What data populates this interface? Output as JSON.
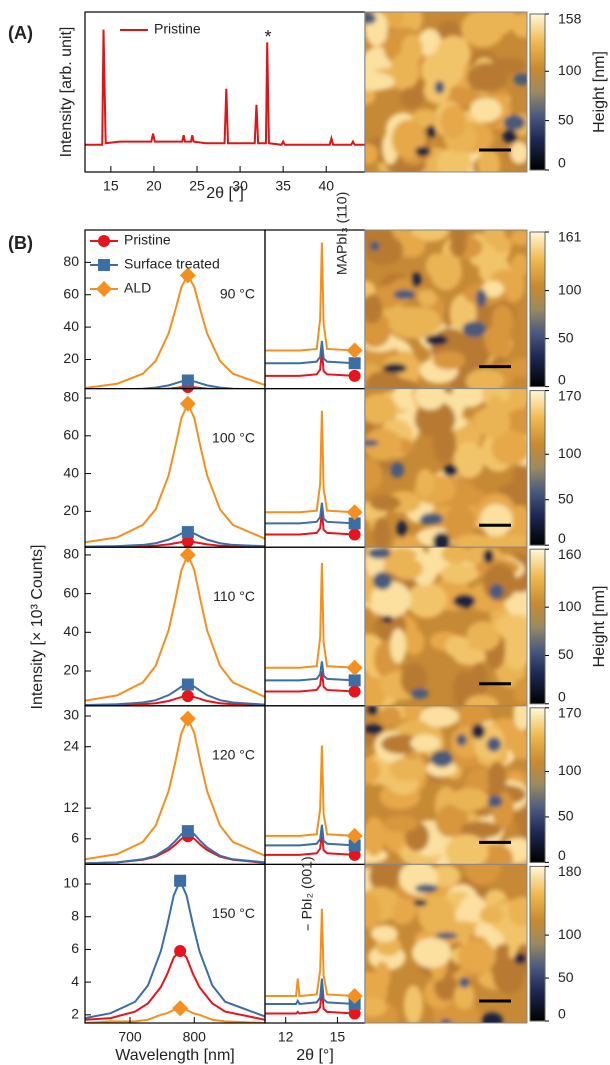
{
  "figure": {
    "panel_labels": [
      "(A)",
      "(B)"
    ],
    "ylabel": "Intensity [× 10³ Counts]"
  },
  "chart_data": [
    {
      "type": "line",
      "xlabel": "2θ [°]",
      "ylabel": "Intensity [arb. unit]",
      "xlim": [
        12,
        44.5
      ],
      "ylim": [
        0,
        100
      ],
      "xticks": [
        15,
        20,
        25,
        30,
        35,
        40
      ],
      "legend": "upper center",
      "annotations": [
        "*"
      ],
      "x": [
        12,
        13,
        14.0,
        14.15,
        14.4,
        16,
        19.7,
        19.9,
        20.1,
        22,
        23.3,
        23.45,
        23.6,
        24.3,
        24.45,
        24.6,
        26,
        28.2,
        28.4,
        28.6,
        30,
        31.7,
        31.9,
        32.1,
        33.0,
        33.15,
        33.35,
        34.8,
        35.0,
        35.2,
        38,
        40.4,
        40.6,
        40.8,
        42.5,
        42.9,
        43.1,
        43.3,
        44.5
      ],
      "series": [
        {
          "name": "Pristine",
          "color": "#e01414",
          "values": [
            17,
            17,
            17,
            89,
            18,
            19,
            19,
            24,
            19,
            19,
            19,
            23,
            19,
            19,
            23,
            19,
            18,
            18,
            52,
            18,
            18,
            18,
            42,
            18,
            18,
            81,
            18,
            17,
            19,
            17,
            17,
            17,
            21,
            17,
            17,
            17,
            19,
            17,
            17
          ]
        }
      ]
    },
    {
      "type": "image",
      "zlim": [
        0,
        158
      ],
      "zticks": [
        0,
        50,
        100,
        158
      ],
      "zlabel": "Height [nm]"
    },
    {
      "type": "line",
      "label": "90 °C",
      "legend": "upper left",
      "xlim": [
        630,
        910
      ],
      "ylim": [
        2,
        100
      ],
      "yticks": [
        20,
        40,
        60,
        80
      ],
      "x": [
        630,
        680,
        720,
        740,
        760,
        770,
        780,
        790,
        800,
        810,
        820,
        840,
        860,
        910
      ],
      "series": [
        {
          "name": "Pristine",
          "color": "#e8141c",
          "marker": "circle",
          "values": [
            1,
            1.1,
            1.3,
            1.6,
            2,
            2.4,
            2.8,
            3,
            2.8,
            2.4,
            2,
            1.6,
            1.3,
            1.1
          ]
        },
        {
          "name": "Surface treated",
          "color": "#3a6ea5",
          "marker": "square",
          "values": [
            1.2,
            1.4,
            1.9,
            2.6,
            4,
            5.2,
            6.4,
            7,
            6.4,
            5.2,
            4,
            2.6,
            1.9,
            1.4
          ]
        },
        {
          "name": "ALD",
          "color": "#f5901e",
          "marker": "diamond",
          "values": [
            2.4,
            5.0,
            11.2,
            19.1,
            36,
            49.8,
            64.8,
            72,
            64.8,
            49.8,
            36,
            19.1,
            11.2,
            4.2
          ]
        }
      ]
    },
    {
      "type": "line",
      "annotations": [
        "MAPbI₃ (110)"
      ],
      "xlim": [
        10.8,
        16.6
      ],
      "ylim": [
        0,
        100
      ],
      "x": [
        10.8,
        12,
        12.6,
        12.7,
        12.8,
        13.8,
        14.0,
        14.1,
        14.2,
        14.4,
        16.0
      ],
      "series": [
        {
          "color": "#e8141c",
          "marker": "circle",
          "values": [
            8,
            8,
            8,
            8,
            8,
            9,
            12,
            24,
            11,
            9,
            8
          ]
        },
        {
          "color": "#3a6ea5",
          "marker": "square",
          "values": [
            16,
            16,
            16,
            16,
            16,
            17,
            20,
            30,
            19,
            17,
            16
          ]
        },
        {
          "color": "#f5901e",
          "marker": "diamond",
          "values": [
            24,
            24,
            24,
            24,
            24,
            25,
            44,
            92,
            41,
            25,
            24
          ]
        }
      ]
    },
    {
      "type": "image",
      "zlim": [
        0,
        161
      ],
      "zticks": [
        0,
        50,
        100,
        161
      ]
    },
    {
      "type": "line",
      "label": "100 °C",
      "xlim": [
        630,
        910
      ],
      "ylim": [
        1,
        85
      ],
      "yticks": [
        20,
        40,
        60,
        80
      ],
      "x": [
        630,
        680,
        720,
        740,
        760,
        770,
        780,
        790,
        800,
        810,
        820,
        840,
        860,
        910
      ],
      "series": [
        {
          "color": "#e8141c",
          "marker": "circle",
          "values": [
            1.1,
            1.2,
            1.5,
            1.8,
            2.5,
            3.1,
            3.7,
            4,
            3.7,
            3.1,
            2.5,
            1.8,
            1.5,
            1.2
          ]
        },
        {
          "color": "#3a6ea5",
          "marker": "square",
          "values": [
            1.3,
            1.6,
            2.2,
            3.1,
            5,
            6.5,
            8.2,
            9,
            8.2,
            6.5,
            5,
            3.1,
            2.2,
            1.5
          ]
        },
        {
          "color": "#f5901e",
          "marker": "diamond",
          "values": [
            3.6,
            6.2,
            12.8,
            21.1,
            39,
            53.6,
            69.4,
            77,
            69.4,
            53.6,
            39,
            21.1,
            12.8,
            5.5
          ]
        }
      ]
    },
    {
      "type": "line",
      "xlim": [
        10.8,
        16.6
      ],
      "ylim": [
        0,
        100
      ],
      "x": [
        10.8,
        12,
        12.6,
        12.7,
        12.8,
        13.8,
        14.0,
        14.1,
        14.2,
        14.4,
        16.0
      ],
      "series": [
        {
          "color": "#e8141c",
          "marker": "circle",
          "values": [
            8,
            8,
            8,
            8,
            8,
            9,
            12,
            22,
            11,
            9,
            8
          ]
        },
        {
          "color": "#3a6ea5",
          "marker": "square",
          "values": [
            15,
            15,
            15,
            15,
            15,
            16,
            19,
            28,
            18,
            16,
            15
          ]
        },
        {
          "color": "#f5901e",
          "marker": "diamond",
          "values": [
            22,
            22,
            22,
            22,
            22,
            23,
            40,
            86,
            37,
            23,
            22
          ]
        }
      ]
    },
    {
      "type": "image",
      "zlim": [
        0,
        170
      ],
      "zticks": [
        0,
        50,
        100,
        170
      ]
    },
    {
      "type": "line",
      "label": "110 °C",
      "xlim": [
        630,
        910
      ],
      "ylim": [
        2,
        84
      ],
      "yticks": [
        20,
        40,
        60,
        80
      ],
      "x": [
        630,
        680,
        720,
        740,
        760,
        770,
        780,
        790,
        800,
        810,
        820,
        840,
        860,
        910
      ],
      "series": [
        {
          "color": "#e8141c",
          "marker": "circle",
          "values": [
            2.2,
            2.3,
            2.8,
            3.3,
            4.5,
            5.5,
            6.5,
            7,
            6.5,
            5.5,
            4.5,
            3.3,
            2.8,
            2.3
          ]
        },
        {
          "color": "#3a6ea5",
          "marker": "square",
          "values": [
            2.4,
            2.8,
            3.7,
            4.9,
            7.5,
            9.6,
            11.9,
            13,
            11.9,
            9.6,
            7.5,
            4.9,
            3.7,
            2.6
          ]
        },
        {
          "color": "#f5901e",
          "marker": "diamond",
          "values": [
            4.7,
            7.4,
            14.1,
            22.7,
            41,
            56,
            72.2,
            80,
            72.2,
            56,
            41,
            22.7,
            14.1,
            6.6
          ]
        }
      ]
    },
    {
      "type": "line",
      "xlim": [
        10.8,
        16.6
      ],
      "ylim": [
        0,
        100
      ],
      "x": [
        10.8,
        12,
        12.6,
        12.7,
        12.8,
        13.8,
        14.0,
        14.1,
        14.2,
        14.4,
        16.0
      ],
      "series": [
        {
          "color": "#e8141c",
          "marker": "circle",
          "values": [
            9,
            9,
            9,
            9,
            9,
            10,
            13,
            22,
            12,
            10,
            9
          ]
        },
        {
          "color": "#3a6ea5",
          "marker": "square",
          "values": [
            16,
            16,
            16,
            16,
            16,
            17,
            20,
            28,
            19,
            17,
            16
          ]
        },
        {
          "color": "#f5901e",
          "marker": "diamond",
          "values": [
            24,
            24,
            24,
            24,
            24,
            25,
            43,
            90,
            40,
            25,
            24
          ]
        }
      ]
    },
    {
      "type": "image",
      "zlim": [
        0,
        160
      ],
      "zticks": [
        0,
        50,
        100,
        160
      ],
      "zlabel": "Height [nm]"
    },
    {
      "type": "line",
      "label": "120 °C",
      "xlim": [
        630,
        910
      ],
      "ylim": [
        1,
        32
      ],
      "yticks": [
        6,
        12,
        24,
        30
      ],
      "x": [
        630,
        680,
        720,
        740,
        760,
        770,
        780,
        790,
        800,
        810,
        820,
        840,
        860,
        910
      ],
      "series": [
        {
          "color": "#e8141c",
          "marker": "circle",
          "values": [
            1.2,
            1.4,
            1.9,
            2.5,
            3.8,
            4.8,
            6,
            6.5,
            6,
            4.8,
            3.8,
            2.5,
            1.9,
            1.3
          ]
        },
        {
          "color": "#3a6ea5",
          "marker": "square",
          "values": [
            1.2,
            1.4,
            2,
            2.7,
            4.3,
            5.5,
            6.9,
            7.5,
            6.9,
            5.5,
            4.3,
            2.7,
            2,
            1.4
          ]
        },
        {
          "color": "#f5901e",
          "marker": "diamond",
          "values": [
            2,
            3,
            5.4,
            8.6,
            15.3,
            20.7,
            26.7,
            29.5,
            26.7,
            20.7,
            15.3,
            8.6,
            5.4,
            2.7
          ]
        }
      ]
    },
    {
      "type": "line",
      "xlim": [
        10.8,
        16.6
      ],
      "ylim": [
        0,
        100
      ],
      "x": [
        10.8,
        12,
        12.6,
        12.7,
        12.8,
        13.8,
        14.0,
        14.1,
        14.2,
        14.4,
        16.0
      ],
      "series": [
        {
          "color": "#e8141c",
          "marker": "circle",
          "values": [
            6,
            6,
            6,
            6,
            6,
            7,
            10,
            20,
            9,
            7,
            6
          ]
        },
        {
          "color": "#3a6ea5",
          "marker": "square",
          "values": [
            12,
            12,
            12,
            12,
            12,
            13,
            16,
            25,
            15,
            13,
            12
          ]
        },
        {
          "color": "#f5901e",
          "marker": "diamond",
          "values": [
            18,
            18,
            18,
            18,
            18,
            19,
            35,
            75,
            32,
            19,
            18
          ]
        }
      ]
    },
    {
      "type": "image",
      "zlim": [
        0,
        170
      ],
      "zticks": [
        0,
        50,
        100,
        170
      ]
    },
    {
      "type": "line",
      "label": "150 °C",
      "xlabel": "Wavelength [nm]",
      "xlim": [
        630,
        910
      ],
      "ylim": [
        1.5,
        11.2
      ],
      "xticks": [
        700,
        800
      ],
      "yticks": [
        2,
        4,
        6,
        8,
        10
      ],
      "x": [
        630,
        670,
        708,
        728,
        748,
        758,
        768,
        778,
        788,
        798,
        808,
        828,
        848,
        910
      ],
      "series": [
        {
          "color": "#e8141c",
          "marker": "circle",
          "values": [
            1.7,
            1.8,
            2.2,
            2.7,
            3.7,
            4.5,
            5.5,
            5.9,
            5.5,
            4.5,
            3.7,
            2.7,
            2.2,
            1.7
          ]
        },
        {
          "color": "#3a6ea5",
          "marker": "square",
          "values": [
            1.8,
            2.1,
            2.8,
            3.8,
            5.9,
            7.5,
            9.3,
            10.2,
            9.3,
            7.5,
            5.9,
            3.8,
            2.8,
            1.9
          ]
        },
        {
          "color": "#f5901e",
          "marker": "diamond",
          "values": [
            1.5,
            1.6,
            1.6,
            1.7,
            2,
            2.1,
            2.3,
            2.4,
            2.3,
            2.1,
            2,
            1.7,
            1.6,
            1.5
          ]
        }
      ]
    },
    {
      "type": "line",
      "xlabel": "2θ [°]",
      "annotations": [
        "PbI₂ (001)"
      ],
      "xlim": [
        10.8,
        16.6
      ],
      "ylim": [
        0,
        100
      ],
      "xticks": [
        12,
        15
      ],
      "x": [
        10.8,
        12,
        12.6,
        12.7,
        12.8,
        13.8,
        14.0,
        14.1,
        14.2,
        14.4,
        16.0
      ],
      "series": [
        {
          "color": "#e8141c",
          "marker": "circle",
          "values": [
            6,
            6,
            6,
            7,
            6,
            7,
            10,
            22,
            9,
            7,
            6
          ]
        },
        {
          "color": "#3a6ea5",
          "marker": "square",
          "values": [
            12,
            12,
            12,
            14,
            12,
            13,
            16,
            28,
            15,
            13,
            12
          ]
        },
        {
          "color": "#f5901e",
          "marker": "diamond",
          "values": [
            17,
            17,
            17,
            28,
            17,
            18,
            33,
            72,
            30,
            18,
            17
          ]
        }
      ]
    },
    {
      "type": "image",
      "zlim": [
        0,
        180
      ],
      "zticks": [
        0,
        50,
        100,
        180
      ]
    }
  ]
}
